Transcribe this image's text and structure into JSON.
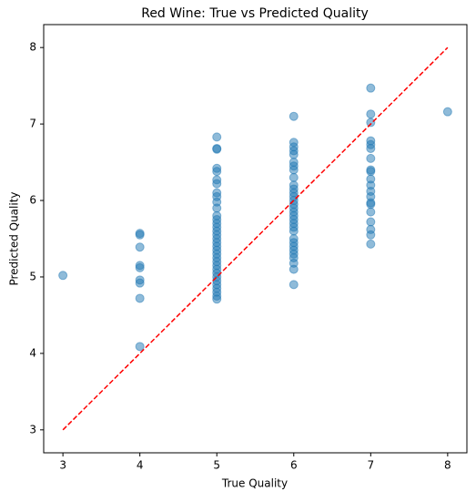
{
  "chart_data": {
    "type": "scatter",
    "title": "Red Wine: True vs Predicted Quality",
    "x_label": "True Quality",
    "y_label": "Predicted Quality",
    "xlim": [
      2.75,
      8.25
    ],
    "ylim": [
      2.7,
      8.3
    ],
    "xticks": [
      3,
      4,
      5,
      6,
      7,
      8
    ],
    "yticks": [
      3,
      4,
      5,
      6,
      7,
      8
    ],
    "grid": false,
    "series": [
      {
        "type": "scatter",
        "color": "#1f77b4",
        "opacity": 0.5,
        "x": [
          3,
          4,
          4,
          4,
          4,
          4,
          4,
          4,
          4,
          4,
          5,
          5,
          5,
          5,
          5,
          5,
          5,
          5,
          5,
          5,
          5,
          5,
          5,
          5,
          5,
          5,
          5,
          5,
          5,
          5,
          5,
          5,
          5,
          5,
          5,
          5,
          5,
          5,
          5,
          5,
          5,
          5,
          5,
          5,
          6,
          6,
          6,
          6,
          6,
          6,
          6,
          6,
          6,
          6,
          6,
          6,
          6,
          6,
          6,
          6,
          6,
          6,
          6,
          6,
          6,
          6,
          6,
          6,
          6,
          6,
          6,
          6,
          6,
          6,
          6,
          7,
          7,
          7,
          7,
          7,
          7,
          7,
          7,
          7,
          7,
          7,
          7,
          7,
          7,
          7,
          7,
          7,
          7,
          7,
          7,
          8
        ],
        "values": [
          5.02,
          5.57,
          5.55,
          5.39,
          5.15,
          5.12,
          4.96,
          4.92,
          4.72,
          4.09,
          6.83,
          6.68,
          6.67,
          6.42,
          6.38,
          6.27,
          6.22,
          6.1,
          6.05,
          5.98,
          5.9,
          5.8,
          5.75,
          5.7,
          5.65,
          5.6,
          5.55,
          5.5,
          5.45,
          5.4,
          5.35,
          5.3,
          5.25,
          5.2,
          5.15,
          5.1,
          5.05,
          5.0,
          4.95,
          4.9,
          4.85,
          4.8,
          4.75,
          4.71,
          7.1,
          6.76,
          6.7,
          6.65,
          6.6,
          6.5,
          6.45,
          6.4,
          6.3,
          6.2,
          6.15,
          6.1,
          6.05,
          6.0,
          5.95,
          5.9,
          5.85,
          5.8,
          5.75,
          5.7,
          5.65,
          5.6,
          5.5,
          5.45,
          5.4,
          5.35,
          5.3,
          5.25,
          5.18,
          5.1,
          4.9,
          7.47,
          7.13,
          7.02,
          6.78,
          6.73,
          6.68,
          6.55,
          6.4,
          6.38,
          6.28,
          6.2,
          6.12,
          6.05,
          5.97,
          5.95,
          5.85,
          5.72,
          5.62,
          5.55,
          5.43,
          7.16
        ]
      },
      {
        "type": "line",
        "color": "#ff0000",
        "dashed": true,
        "x": [
          3,
          8
        ],
        "values": [
          3,
          8
        ]
      }
    ]
  }
}
